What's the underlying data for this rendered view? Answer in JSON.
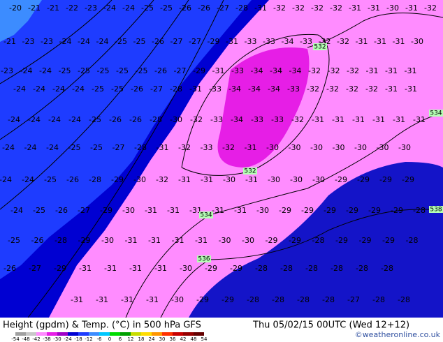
{
  "title": "Height (gpdm) & Temp. (°C) in 500 hPa GFS",
  "date": "Thu 05/02/15 00UTC (Wed 12+12)",
  "copyright": "©weatheronline.co.uk",
  "contour_labels": [
    "532",
    "534",
    "532",
    "534",
    "536",
    "538"
  ],
  "colorbar": {
    "labels": [
      "-54",
      "-48",
      "-42",
      "-38",
      "-30",
      "-24",
      "-18",
      "-12",
      "-6",
      "0",
      "6",
      "12",
      "18",
      "24",
      "30",
      "36",
      "42",
      "48",
      "54"
    ],
    "colors": [
      "#a0a0a0",
      "#c8c8c8",
      "#ff8cff",
      "#e61ee6",
      "#a000c8",
      "#0000d2",
      "#1e3cff",
      "#3c8cff",
      "#00c8ff",
      "#00dc00",
      "#00a000",
      "#c8dc00",
      "#ffdc00",
      "#ff9600",
      "#ff3200",
      "#c80000",
      "#960000",
      "#640000"
    ]
  },
  "temperature_rows": [
    [
      "-20",
      "-21",
      "-21",
      "-22",
      "-23",
      "-24",
      "-24",
      "-25",
      "-25",
      "-26",
      "-26",
      "-27",
      "-28",
      "-31",
      "-32",
      "-32",
      "-32",
      "-32",
      "-31",
      "-31",
      "-30",
      "-31",
      "-32"
    ],
    [
      "-21",
      "-23",
      "-23",
      "-24",
      "-24",
      "-24",
      "-25",
      "-25",
      "-26",
      "-27",
      "-27",
      "-29",
      "-31",
      "-33",
      "-33",
      "-34",
      "-33",
      "-32",
      "-32",
      "-31",
      "-31",
      "-31",
      "-30"
    ],
    [
      "-23",
      "-24",
      "-24",
      "-25",
      "-25",
      "-25",
      "-25",
      "-25",
      "-26",
      "-27",
      "-29",
      "-31",
      "-33",
      "-34",
      "-34",
      "-34",
      "-32",
      "-32",
      "-32",
      "-31",
      "-31",
      "-31"
    ],
    [
      "-24",
      "-24",
      "-24",
      "-24",
      "-25",
      "-25",
      "-26",
      "-27",
      "-28",
      "-31",
      "-33",
      "-34",
      "-34",
      "-34",
      "-33",
      "-32",
      "-32",
      "-32",
      "-32",
      "-31",
      "-31"
    ],
    [
      "-24",
      "-24",
      "-24",
      "-24",
      "-25",
      "-26",
      "-26",
      "-28",
      "-30",
      "-32",
      "-33",
      "-34",
      "-33",
      "-33",
      "-32",
      "-31",
      "-31",
      "-31",
      "-31",
      "-31",
      "-31"
    ],
    [
      "-24",
      "-24",
      "-24",
      "-25",
      "-25",
      "-27",
      "-28",
      "-31",
      "-32",
      "-33",
      "-32",
      "-31",
      "-30",
      "-30",
      "-30",
      "-30",
      "-30",
      "-30",
      "-30"
    ],
    [
      "-24",
      "-24",
      "-25",
      "-26",
      "-28",
      "-29",
      "-30",
      "-32",
      "-31",
      "-31",
      "-30",
      "-31",
      "-30",
      "-30",
      "-30",
      "-29",
      "-29",
      "-29",
      "-29"
    ],
    [
      "-24",
      "-25",
      "-26",
      "-27",
      "-29",
      "-30",
      "-31",
      "-31",
      "-31",
      "-31",
      "-31",
      "-30",
      "-29",
      "-29",
      "-29",
      "-29",
      "-29",
      "-29",
      "-28"
    ],
    [
      "-25",
      "-26",
      "-28",
      "-29",
      "-30",
      "-31",
      "-31",
      "-31",
      "-31",
      "-30",
      "-30",
      "-29",
      "-29",
      "-28",
      "-29",
      "-29",
      "-29",
      "-28"
    ],
    [
      "-26",
      "-27",
      "-29",
      "-31",
      "-31",
      "-31",
      "-31",
      "-30",
      "-29",
      "-29",
      "-28",
      "-28",
      "-28",
      "-28",
      "-28",
      "-28"
    ],
    [
      "-31",
      "-31",
      "-31",
      "-31",
      "-30",
      "-29",
      "-29",
      "-28",
      "-28",
      "-28",
      "-28",
      "-27",
      "-28",
      "-28"
    ]
  ]
}
